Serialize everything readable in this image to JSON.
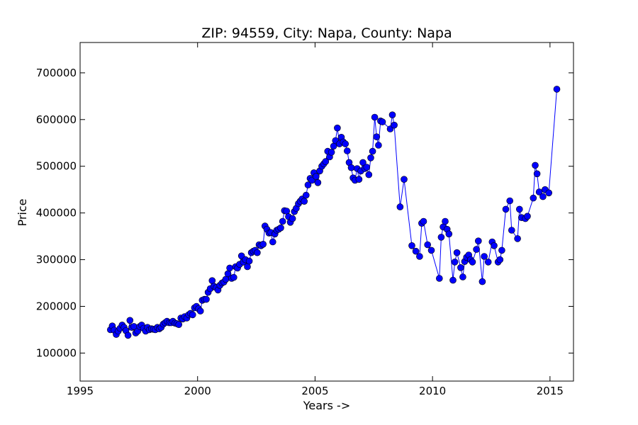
{
  "chart_data": {
    "type": "line",
    "title": "ZIP: 94559, City: Napa, County: Napa",
    "xlabel": "Years ->",
    "ylabel": "Price",
    "xlim": [
      1995,
      2016
    ],
    "ylim": [
      40000,
      765000
    ],
    "xticks": [
      1995,
      2000,
      2005,
      2010,
      2015
    ],
    "yticks": [
      100000,
      200000,
      300000,
      400000,
      500000,
      600000,
      700000
    ],
    "grid": false,
    "legend": "none",
    "series_color": "#0000ff",
    "marker": "circle",
    "series": [
      {
        "x": [
          1996.29,
          1996.37,
          1996.45,
          1996.54,
          1996.62,
          1996.7,
          1996.79,
          1996.87,
          1996.95,
          1997.04,
          1997.12,
          1997.2,
          1997.29,
          1997.37,
          1997.45,
          1997.54,
          1997.62,
          1997.7,
          1997.79,
          1997.87,
          1997.95,
          1998.04,
          1998.12,
          1998.2,
          1998.29,
          1998.37,
          1998.45,
          1998.54,
          1998.62,
          1998.7,
          1998.79,
          1998.87,
          1998.95,
          1999.04,
          1999.12,
          1999.2,
          1999.29,
          1999.37,
          1999.45,
          1999.54,
          1999.62,
          1999.7,
          1999.79,
          1999.87,
          1999.95,
          2000.04,
          2000.12,
          2000.2,
          2000.29,
          2000.37,
          2000.45,
          2000.54,
          2000.62,
          2000.7,
          2000.79,
          2000.87,
          2000.95,
          2001.04,
          2001.12,
          2001.2,
          2001.29,
          2001.37,
          2001.45,
          2001.54,
          2001.62,
          2001.7,
          2001.79,
          2001.87,
          2001.95,
          2002.04,
          2002.12,
          2002.2,
          2002.29,
          2002.37,
          2002.45,
          2002.54,
          2002.62,
          2002.7,
          2002.79,
          2002.87,
          2002.95,
          2003.04,
          2003.12,
          2003.2,
          2003.29,
          2003.37,
          2003.45,
          2003.54,
          2003.62,
          2003.7,
          2003.79,
          2003.87,
          2003.95,
          2004.04,
          2004.12,
          2004.2,
          2004.29,
          2004.37,
          2004.45,
          2004.54,
          2004.62,
          2004.7,
          2004.79,
          2004.87,
          2004.95,
          2005.04,
          2005.12,
          2005.2,
          2005.29,
          2005.37,
          2005.45,
          2005.54,
          2005.62,
          2005.7,
          2005.79,
          2005.87,
          2005.95,
          2006.04,
          2006.12,
          2006.2,
          2006.29,
          2006.37,
          2006.45,
          2006.54,
          2006.62,
          2006.7,
          2006.79,
          2006.87,
          2006.95,
          2007.04,
          2007.12,
          2007.2,
          2007.29,
          2007.37,
          2007.45,
          2007.54,
          2007.62,
          2007.7,
          2007.79,
          2007.87,
          2008.2,
          2008.29,
          2008.37,
          2008.62,
          2008.79,
          2009.12,
          2009.29,
          2009.45,
          2009.54,
          2009.62,
          2009.79,
          2009.95,
          2010.29,
          2010.37,
          2010.45,
          2010.54,
          2010.62,
          2010.7,
          2010.87,
          2010.95,
          2011.04,
          2011.2,
          2011.29,
          2011.37,
          2011.45,
          2011.54,
          2011.62,
          2011.7,
          2011.87,
          2011.95,
          2012.12,
          2012.2,
          2012.37,
          2012.54,
          2012.62,
          2012.79,
          2012.87,
          2012.95,
          2013.12,
          2013.29,
          2013.37,
          2013.62,
          2013.7,
          2013.79,
          2013.95,
          2014.04,
          2014.29,
          2014.37,
          2014.45,
          2014.54,
          2014.7,
          2014.79,
          2014.95,
          2015.29
        ],
        "y": [
          150000,
          158000,
          149000,
          140000,
          147000,
          153000,
          160000,
          155000,
          148000,
          138000,
          170000,
          155000,
          157000,
          143000,
          147000,
          157000,
          160000,
          153000,
          147000,
          155000,
          150000,
          152000,
          151000,
          150000,
          155000,
          152000,
          155000,
          162000,
          165000,
          168000,
          165000,
          165000,
          168000,
          164000,
          163000,
          161000,
          175000,
          173000,
          178000,
          175000,
          182000,
          185000,
          182000,
          197000,
          200000,
          195000,
          190000,
          213000,
          215000,
          215000,
          230000,
          238000,
          255000,
          243000,
          240000,
          235000,
          245000,
          250000,
          252000,
          258000,
          270000,
          282000,
          260000,
          262000,
          285000,
          282000,
          290000,
          308000,
          295000,
          300000,
          285000,
          297000,
          315000,
          318000,
          320000,
          315000,
          332000,
          330000,
          333000,
          372000,
          365000,
          357000,
          358000,
          338000,
          355000,
          363000,
          365000,
          368000,
          382000,
          405000,
          404000,
          392000,
          380000,
          388000,
          403000,
          410000,
          420000,
          425000,
          430000,
          425000,
          438000,
          460000,
          474000,
          470000,
          486000,
          478000,
          465000,
          490000,
          500000,
          505000,
          510000,
          532000,
          520000,
          530000,
          543000,
          555000,
          582000,
          548000,
          562000,
          552000,
          548000,
          533000,
          508000,
          497000,
          475000,
          470000,
          495000,
          472000,
          490000,
          508000,
          495000,
          498000,
          482000,
          518000,
          532000,
          605000,
          563000,
          545000,
          597000,
          595000,
          580000,
          610000,
          588000,
          413000,
          472000,
          330000,
          318000,
          307000,
          378000,
          382000,
          332000,
          320000,
          260000,
          348000,
          370000,
          382000,
          365000,
          355000,
          256000,
          295000,
          315000,
          283000,
          263000,
          296000,
          305000,
          310000,
          300000,
          295000,
          322000,
          340000,
          253000,
          307000,
          295000,
          338000,
          330000,
          295000,
          300000,
          320000,
          408000,
          426000,
          363000,
          345000,
          408000,
          390000,
          388000,
          393000,
          432000,
          502000,
          484000,
          445000,
          435000,
          450000,
          443000,
          665000
        ]
      }
    ]
  }
}
